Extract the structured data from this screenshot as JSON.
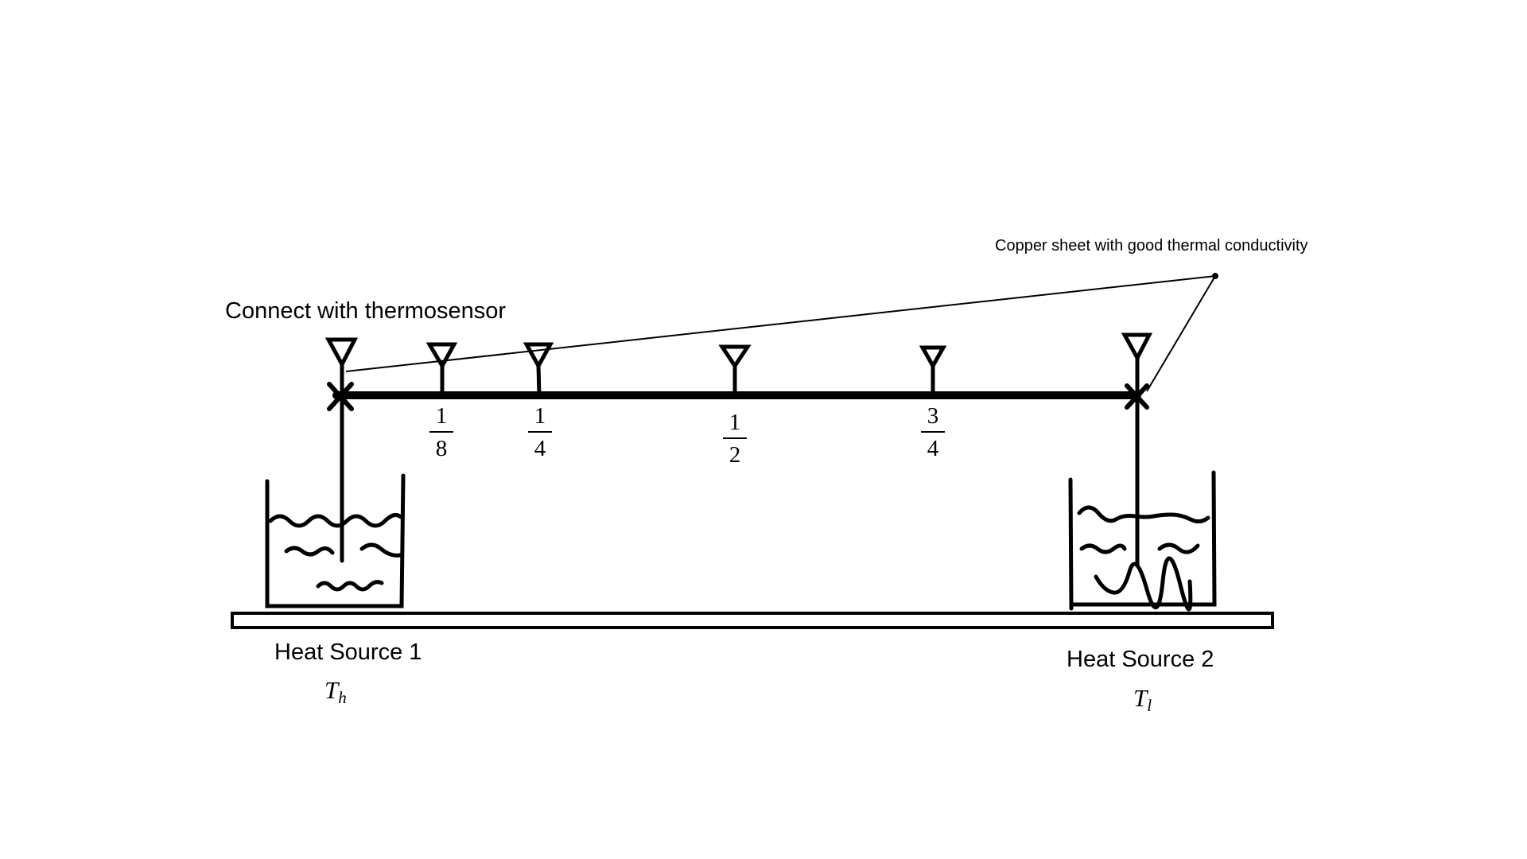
{
  "labels": {
    "thermosensor": "Connect with thermosensor",
    "copper_sheet": "Copper sheet with good thermal conductivity",
    "heat_source_1": "Heat Source 1",
    "heat_source_2": "Heat Source 2",
    "temp_high": {
      "base": "T",
      "sub": "h"
    },
    "temp_low": {
      "base": "T",
      "sub": "l"
    }
  },
  "fractions": [
    {
      "num": "1",
      "den": "8"
    },
    {
      "num": "1",
      "den": "4"
    },
    {
      "num": "1",
      "den": "2"
    },
    {
      "num": "3",
      "den": "4"
    }
  ],
  "colors": {
    "stroke": "#000000",
    "background": "#ffffff"
  }
}
